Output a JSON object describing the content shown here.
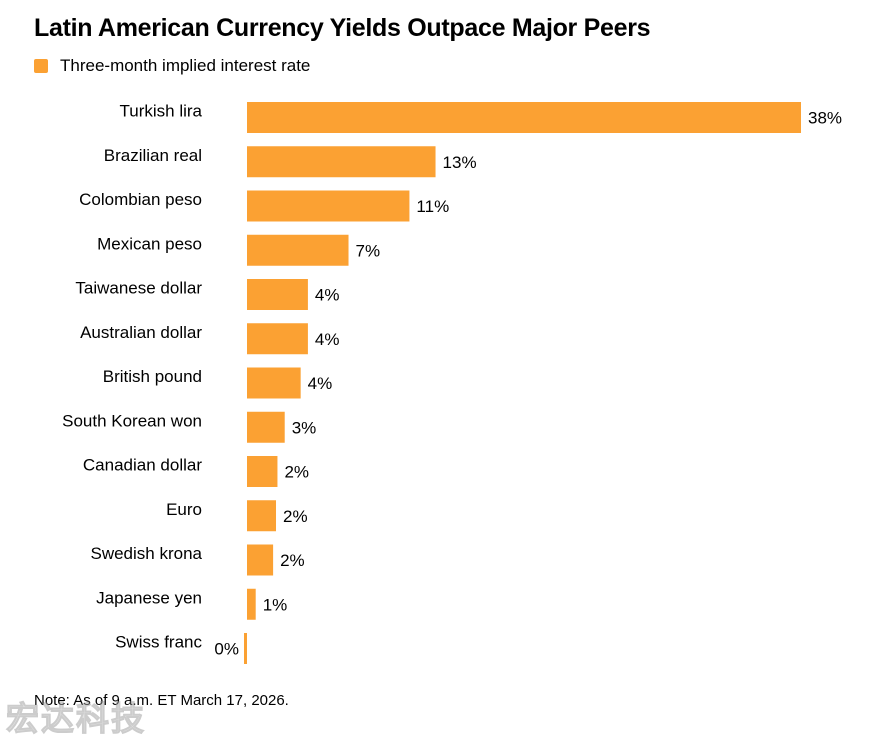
{
  "title": "Latin American Currency Yields Outpace Major Peers",
  "note": "Note: As of 9 a.m. ET March 17, 2026.",
  "watermark": "宏达科技",
  "colors": {
    "bar": "#FBA133",
    "text": "#000000"
  },
  "chart_data": {
    "type": "bar",
    "orientation": "horizontal",
    "title": "Latin American Currency Yields Outpace Major Peers",
    "legend": {
      "position": "top-left",
      "entries": [
        "Three-month implied interest rate"
      ]
    },
    "categories": [
      "Turkish lira",
      "Brazilian real",
      "Colombian peso",
      "Mexican peso",
      "Taiwanese dollar",
      "Australian dollar",
      "British pound",
      "South Korean won",
      "Canadian dollar",
      "Euro",
      "Swedish krona",
      "Japanese yen",
      "Swiss franc"
    ],
    "series": [
      {
        "name": "Three-month implied interest rate",
        "values": [
          38.2,
          13.0,
          11.2,
          7.0,
          4.2,
          4.2,
          3.7,
          2.6,
          2.1,
          2.0,
          1.8,
          0.6,
          -0.1
        ],
        "labels": [
          "38%",
          "13%",
          "11%",
          "7%",
          "4%",
          "4%",
          "4%",
          "3%",
          "2%",
          "2%",
          "2%",
          "1%",
          "0%"
        ]
      }
    ],
    "xlim": [
      -0.2,
      38.2
    ],
    "grid": false,
    "units": "%"
  }
}
